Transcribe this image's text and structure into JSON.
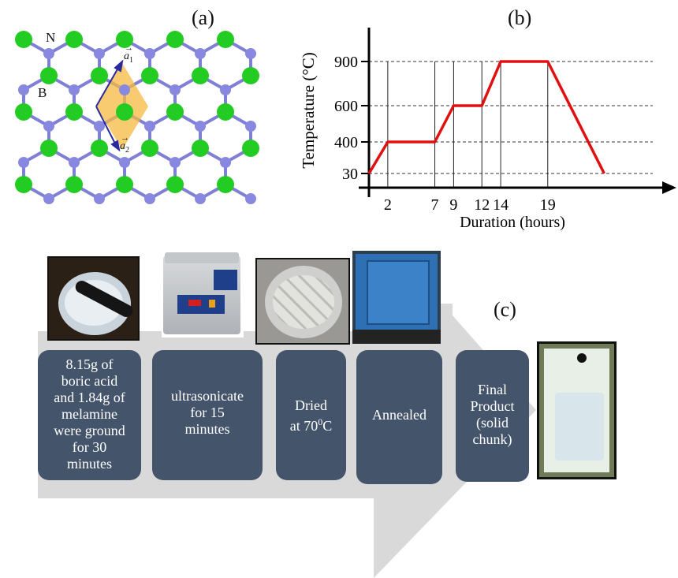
{
  "panel_labels": {
    "a": "(a)",
    "b": "(b)",
    "c": "(c)"
  },
  "lattice": {
    "atom_n": "N",
    "atom_b": "B",
    "vec_a1": "a",
    "vec_a1_sub": "1",
    "vec_a2": "a",
    "vec_a2_sub": "2",
    "colors": {
      "boron": "#22cc22",
      "nitrogen": "#8888e0",
      "bond": "#7f7fd6",
      "cell": "#f5b940",
      "vector": "#2a2aa0"
    }
  },
  "chart_data": {
    "type": "line",
    "title": "",
    "xlabel": "Duration (hours)",
    "ylabel": "Temperature (°C)",
    "x": [
      0,
      2,
      7,
      9,
      12,
      14,
      19,
      25
    ],
    "series": [
      {
        "values": [
          30,
          400,
          400,
          600,
          600,
          900,
          900,
          30
        ]
      }
    ],
    "x_ticks": [
      "2",
      "7",
      "9",
      "12",
      "14",
      "19"
    ],
    "y_ticks": [
      "30",
      "400",
      "600",
      "900"
    ],
    "y_tick_values": [
      30,
      400,
      600,
      900
    ],
    "x_tick_values": [
      2,
      7,
      9,
      12,
      14,
      19
    ],
    "xlim": [
      0,
      31
    ],
    "ylim": [
      0,
      1100
    ],
    "grid": "dashed horizontal at ticks, solid vertical at x ticks",
    "line_color": "#e01010"
  },
  "process": {
    "steps": [
      "8.15g of\nboric acid\nand 1.84g of\nmelamine\nwere ground\nfor 30\nminutes",
      "ultrasonicate\nfor 15\nminutes",
      "Dried\nat 70",
      "Annealed",
      "Final\nProduct\n(solid\nchunk)"
    ],
    "dried_sup": "0",
    "dried_unit": "C",
    "colors": {
      "step_box": "#44546a",
      "arrow": "#d9d9d9"
    }
  }
}
